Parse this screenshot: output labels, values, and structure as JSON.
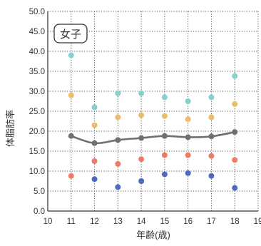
{
  "chart_data": {
    "type": "scatter",
    "legend_label": "女子",
    "xlabel": "年齢(歳)",
    "ylabel": "体脂肪率",
    "xlim": [
      10,
      19
    ],
    "ylim": [
      0,
      50
    ],
    "x_ticks": [
      "10",
      "11",
      "12",
      "13",
      "14",
      "15",
      "16",
      "17",
      "18",
      "19"
    ],
    "y_ticks": [
      "0.0",
      "5.0",
      "10.0",
      "15.0",
      "20.0",
      "25.0",
      "30.0",
      "35.0",
      "40.0",
      "45.0",
      "50.0"
    ],
    "grid": true,
    "series": [
      {
        "color": "#86d1cb",
        "x": [
          11,
          12,
          13,
          14,
          15,
          16,
          17,
          18
        ],
        "values": [
          39.0,
          26.0,
          29.5,
          29.5,
          28.5,
          27.5,
          28.5,
          33.8
        ]
      },
      {
        "color": "#e9bd6b",
        "x": [
          11,
          12,
          13,
          14,
          15,
          16,
          17,
          18
        ],
        "values": [
          29.0,
          21.5,
          23.5,
          24.0,
          23.8,
          23.0,
          23.5,
          26.8
        ]
      },
      {
        "color": "#707070",
        "x": [
          11,
          12,
          13,
          14,
          15,
          16,
          17,
          18
        ],
        "values": [
          18.8,
          17.0,
          17.8,
          18.3,
          18.8,
          18.5,
          18.7,
          19.8
        ],
        "line": true
      },
      {
        "color": "#ee7b68",
        "x": [
          11,
          12,
          13,
          14,
          15,
          16,
          17,
          18
        ],
        "values": [
          8.8,
          12.5,
          11.8,
          13.0,
          14.0,
          14.0,
          13.8,
          12.8
        ]
      },
      {
        "color": "#4d6bbd",
        "x": [
          11,
          12,
          13,
          14,
          15,
          16,
          17,
          18
        ],
        "values": [
          null,
          8.0,
          6.0,
          7.5,
          9.2,
          9.5,
          8.8,
          5.8
        ]
      }
    ]
  }
}
